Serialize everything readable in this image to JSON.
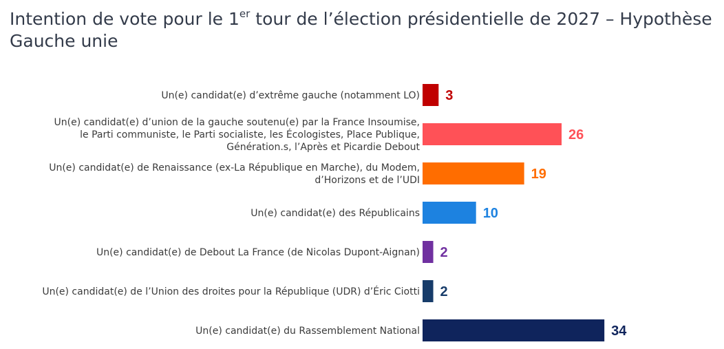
{
  "title": {
    "part1": "Intention de vote pour le 1",
    "sup": "er",
    "part2": " tour de l’élection présidentielle de 2027 – Hypothèse Gauche unie"
  },
  "chart_data": {
    "type": "bar",
    "orientation": "horizontal",
    "categories": [
      [
        "Un(e) candidat(e) d’extrême gauche (notamment LO)"
      ],
      [
        "Un(e) candidat(e) d’union de la gauche soutenu(e) par la France Insoumise,",
        "le Parti communiste, le Parti socialiste, les Écologistes, Place Publique,",
        "Génération.s, l’Après et Picardie Debout"
      ],
      [
        "Un(e) candidat(e) de Renaissance (ex-La République en Marche), du Modem,",
        "d’Horizons et de l’UDI"
      ],
      [
        "Un(e) candidat(e) des Républicains"
      ],
      [
        "Un(e) candidat(e) de Debout La France (de Nicolas Dupont-Aignan)"
      ],
      [
        "Un(e) candidat(e) de l’Union des droites pour la République (UDR) d’Éric Ciotti"
      ],
      [
        "Un(e) candidat(e) du Rassemblement National"
      ]
    ],
    "values": [
      3,
      26,
      19,
      10,
      2,
      2,
      34
    ],
    "colors": [
      "#c00000",
      "#ff5157",
      "#ff6d00",
      "#1d82e0",
      "#7030a0",
      "#173c6a",
      "#0f245c"
    ],
    "value_label_colors": [
      "#c00000",
      "#ff5157",
      "#ff6d00",
      "#1d82e0",
      "#7030a0",
      "#173c6a",
      "#0f245c"
    ],
    "xlim": [
      0,
      34
    ],
    "grid": false,
    "legend": "none"
  }
}
